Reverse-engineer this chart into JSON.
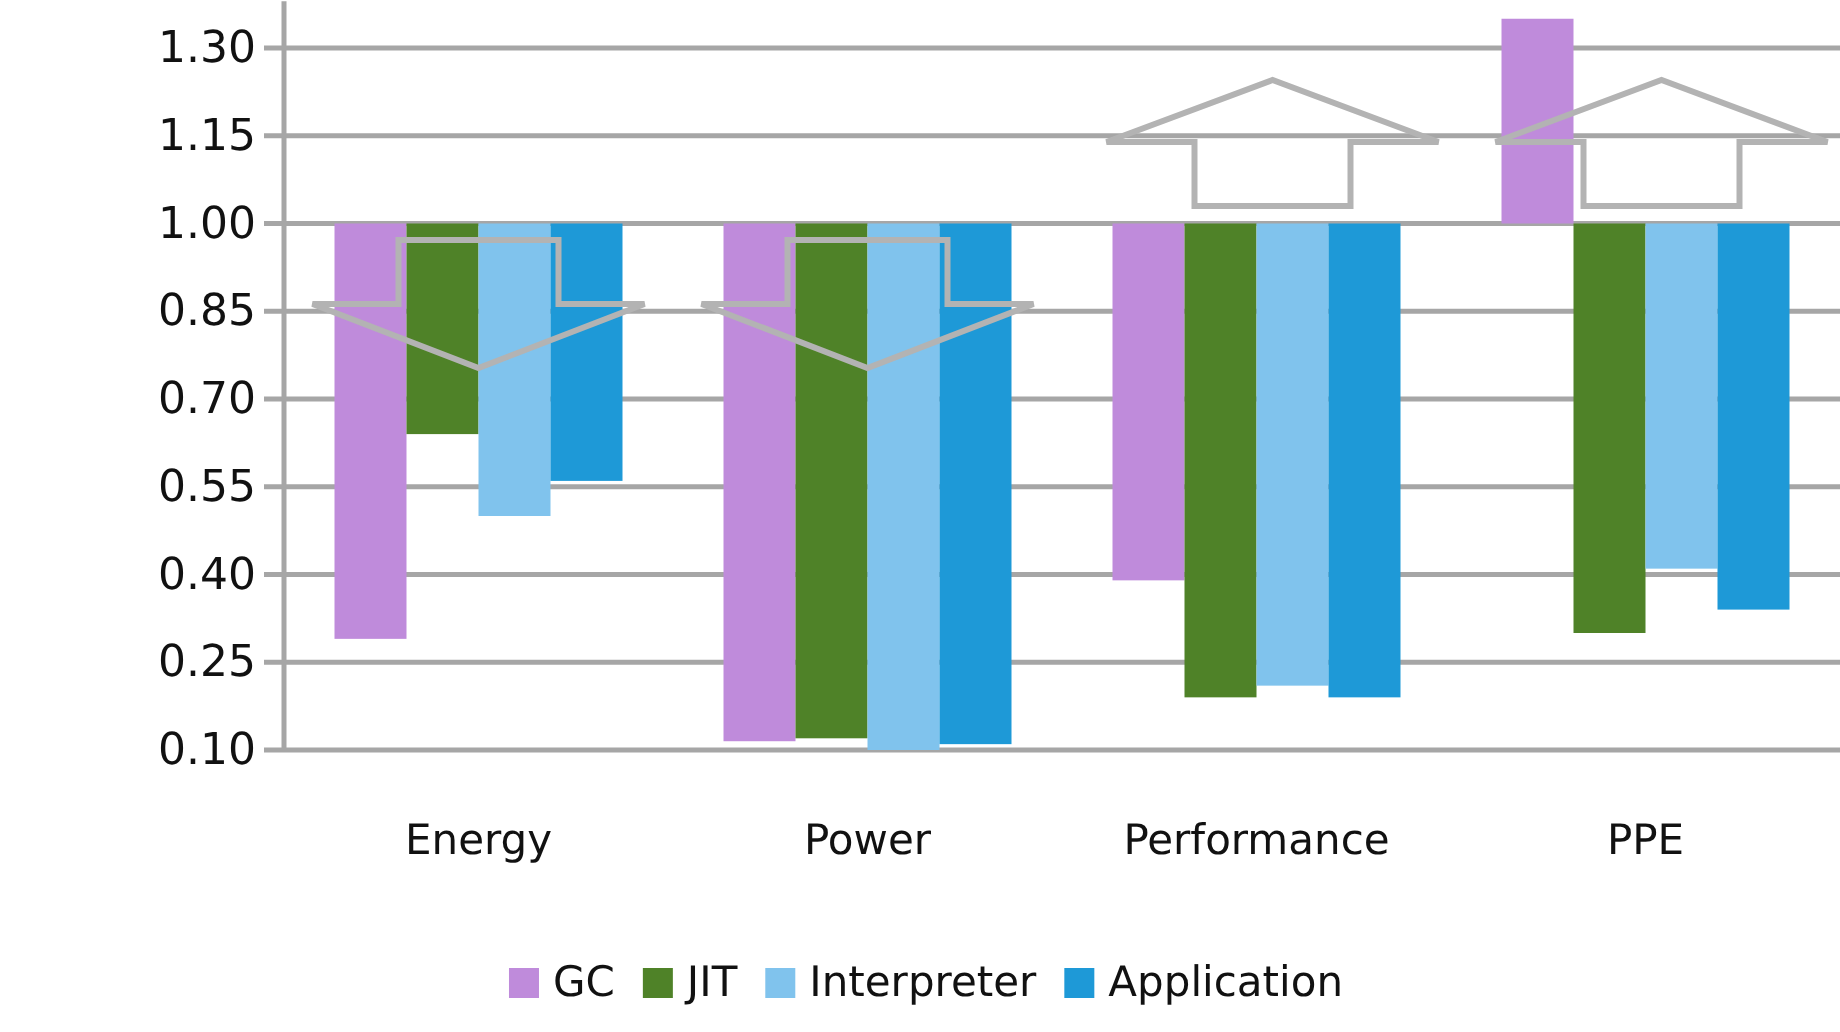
{
  "chart_data": {
    "type": "bar",
    "categories": [
      "Energy",
      "Power",
      "Performance",
      "PPE"
    ],
    "series": [
      {
        "name": "GC",
        "color": "#bf8bdb",
        "base": [
          1,
          1,
          1,
          1
        ],
        "values": [
          -0.71,
          -0.885,
          -0.61,
          0.35
        ]
      },
      {
        "name": "JIT",
        "color": "#4f8228",
        "base": [
          1,
          1,
          1,
          1
        ],
        "values": [
          -0.36,
          -0.88,
          -0.81,
          -0.7
        ]
      },
      {
        "name": "Interpreter",
        "color": "#80c3ed",
        "base": [
          1,
          1,
          1,
          1
        ],
        "values": [
          -0.5,
          -0.9,
          -0.79,
          -0.59
        ]
      },
      {
        "name": "Application",
        "color": "#1e99d7",
        "base": [
          1,
          1,
          1,
          1
        ],
        "values": [
          -0.44,
          -0.89,
          -0.81,
          -0.66
        ]
      }
    ],
    "ylim": [
      0.1,
      1.38
    ],
    "yticks": [
      {
        "value": 0.1,
        "label": "0.10"
      },
      {
        "value": 0.25,
        "label": "0.25"
      },
      {
        "value": 0.4,
        "label": "0.40"
      },
      {
        "value": 0.55,
        "label": "0.55"
      },
      {
        "value": 0.7,
        "label": "0.70"
      },
      {
        "value": 0.85,
        "label": "0.85"
      },
      {
        "value": 1,
        "label": "1.00"
      },
      {
        "value": 1.15,
        "label": "1.15"
      },
      {
        "value": 1.3,
        "label": "1.30"
      }
    ],
    "grid": "y",
    "legend": "bottom"
  }
}
